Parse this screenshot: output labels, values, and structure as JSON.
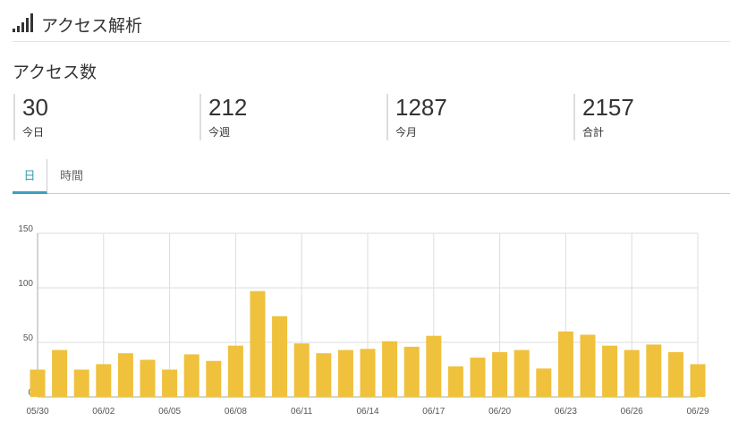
{
  "header": {
    "title": "アクセス解析"
  },
  "section_title": "アクセス数",
  "stats": [
    {
      "value": 30,
      "label": "今日"
    },
    {
      "value": 212,
      "label": "今週"
    },
    {
      "value": 1287,
      "label": "今月"
    },
    {
      "value": 2157,
      "label": "合計"
    }
  ],
  "tabs": [
    "日",
    "時間"
  ],
  "chart_data": {
    "type": "bar",
    "categories": [
      "05/30",
      null,
      null,
      "06/02",
      null,
      null,
      "06/05",
      null,
      null,
      "06/08",
      null,
      null,
      "06/11",
      null,
      null,
      "06/14",
      null,
      null,
      "06/17",
      null,
      null,
      "06/20",
      null,
      null,
      "06/23",
      null,
      null,
      "06/26",
      null,
      null,
      "06/29"
    ],
    "values": [
      25,
      43,
      25,
      30,
      40,
      34,
      25,
      39,
      33,
      47,
      97,
      74,
      49,
      40,
      43,
      44,
      51,
      46,
      56,
      28,
      36,
      41,
      43,
      26,
      60,
      57,
      47,
      43,
      48,
      41,
      30
    ],
    "color": "#efc13c",
    "ylim": [
      0,
      150
    ],
    "yticks": [
      0,
      50,
      100,
      150
    ],
    "grid": true
  }
}
